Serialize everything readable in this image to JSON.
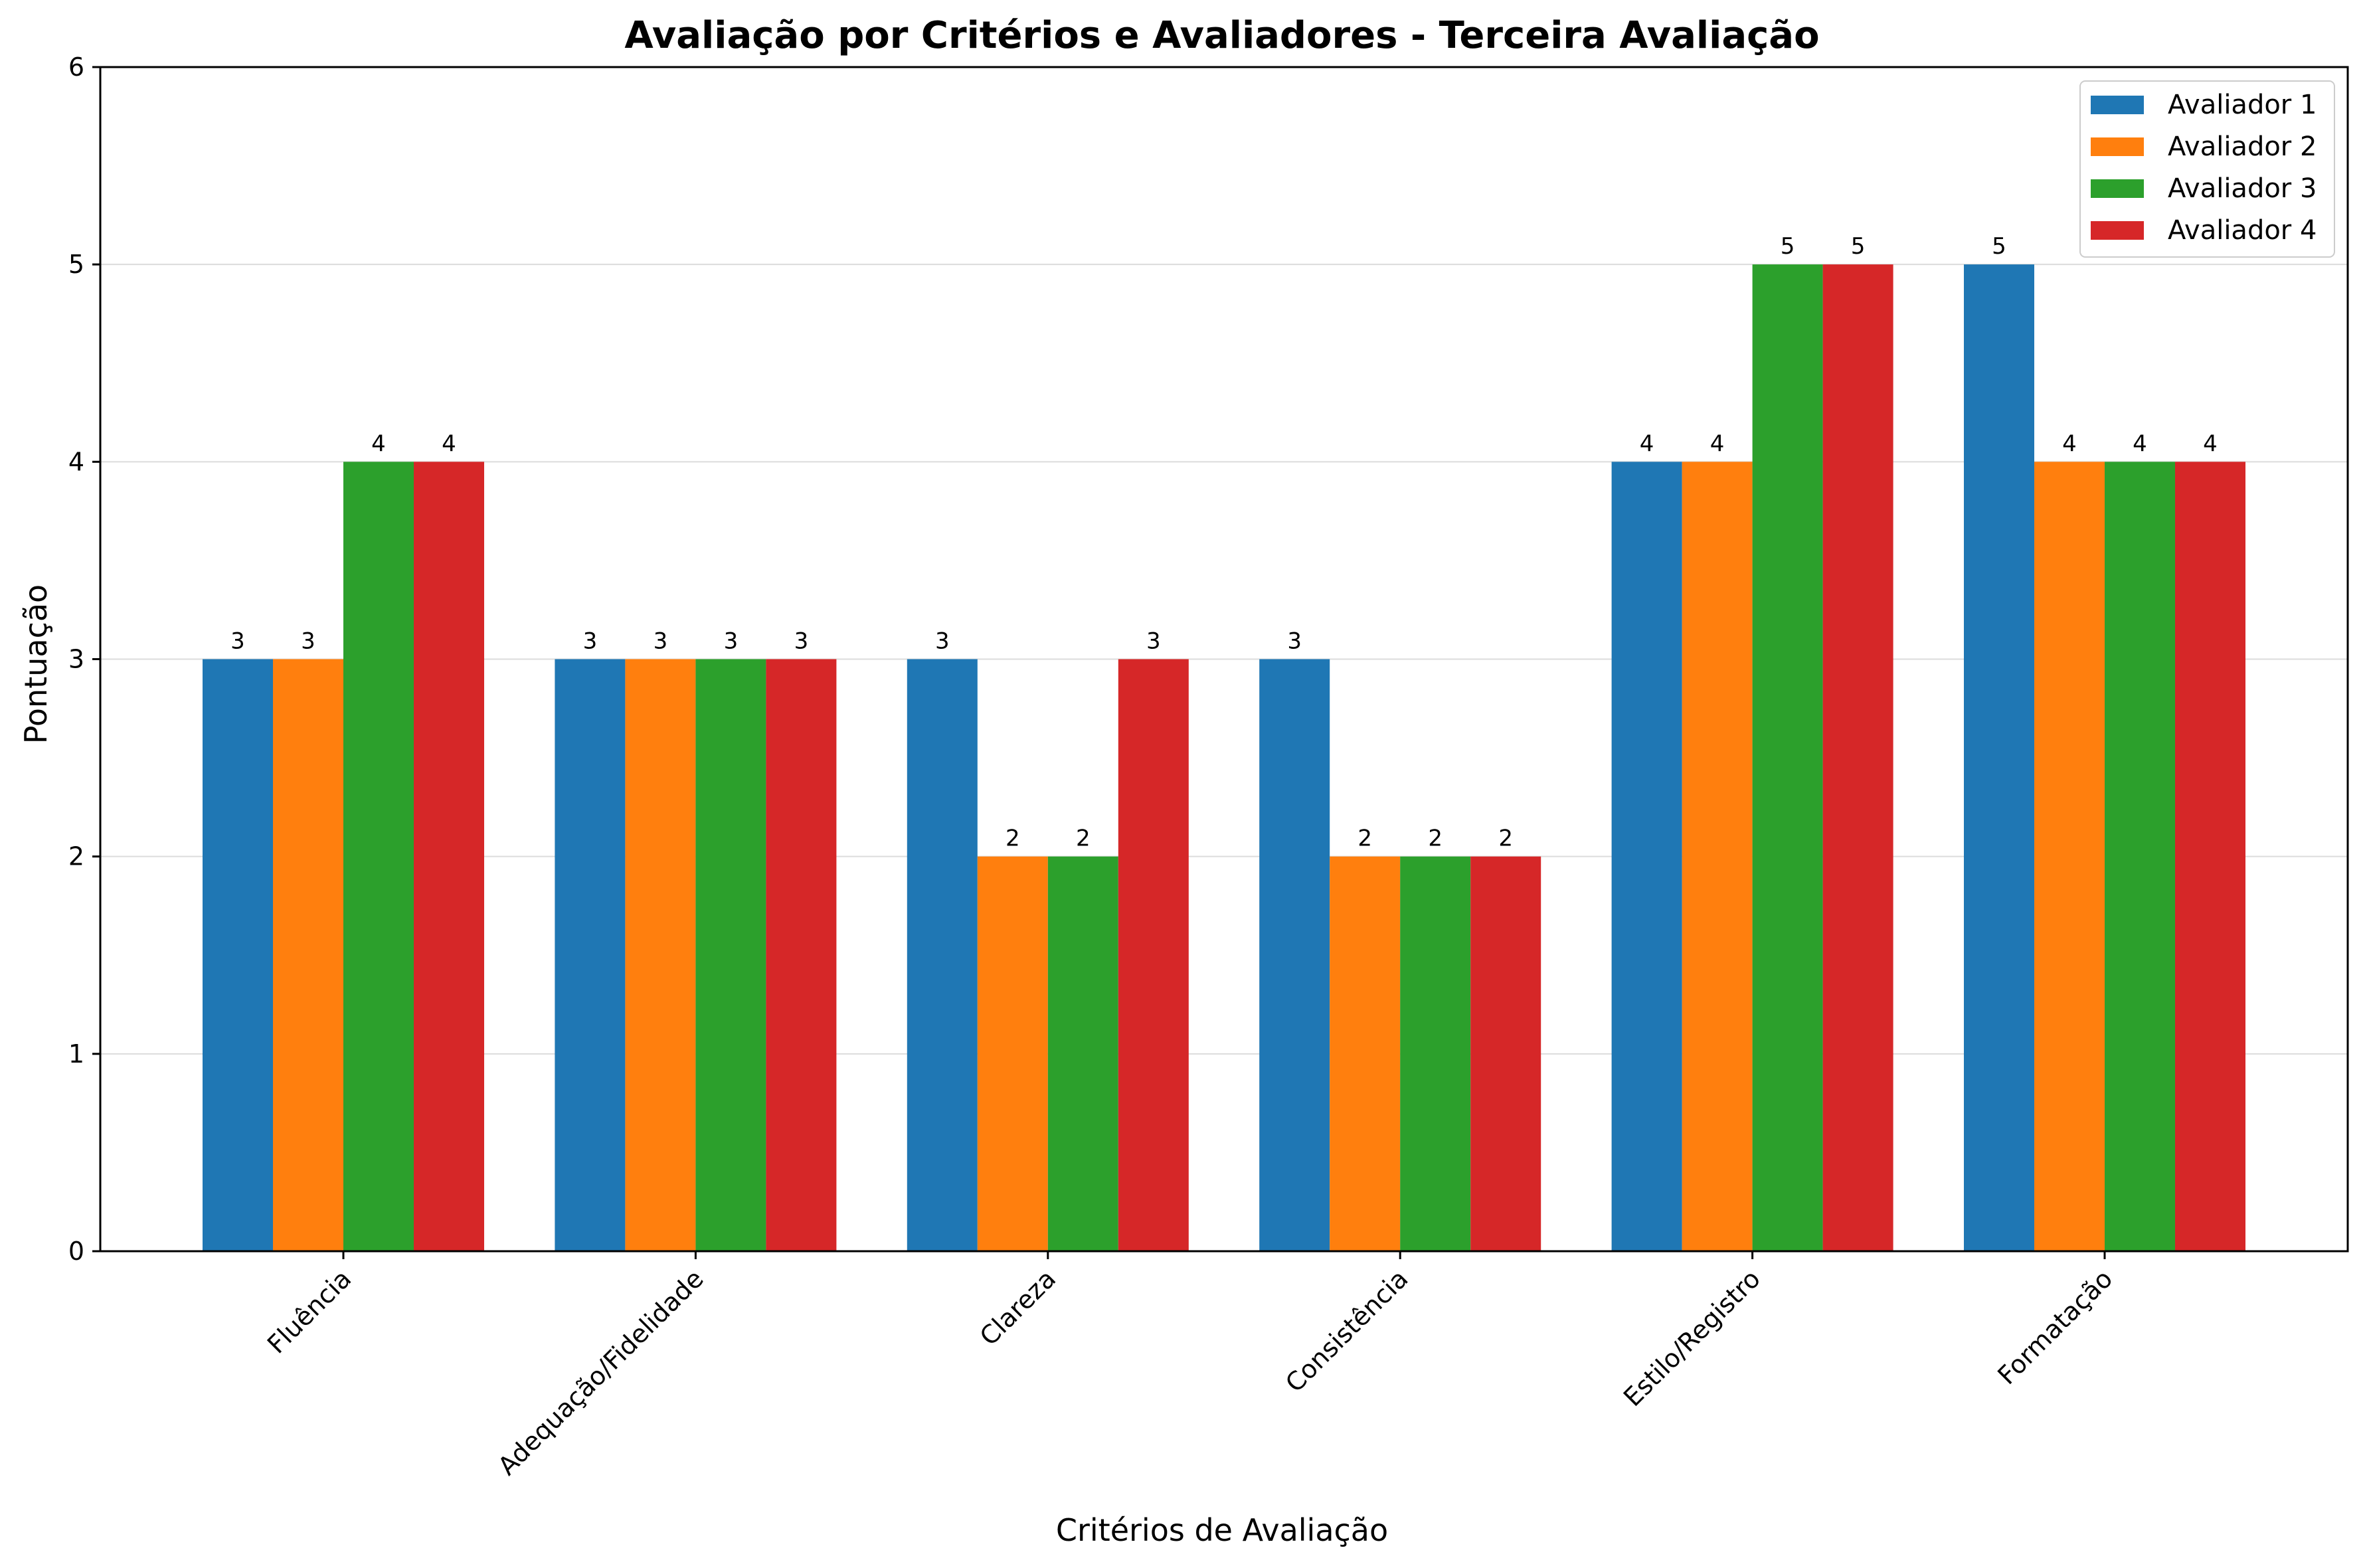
{
  "chart_data": {
    "type": "bar",
    "title": "Avaliação por Critérios e Avaliadores - Terceira Avaliação",
    "xlabel": "Critérios de Avaliação",
    "ylabel": "Pontuação",
    "ylim": [
      0,
      6
    ],
    "yticks": [
      "0",
      "1",
      "2",
      "3",
      "4",
      "5",
      "6"
    ],
    "categories": [
      "Fluência",
      "Adequação/Fidelidade",
      "Clareza",
      "Consistência",
      "Estilo/Registro",
      "Formatação"
    ],
    "series": [
      {
        "name": "Avaliador 1",
        "color": "#1f77b4",
        "values": [
          3,
          3,
          3,
          3,
          4,
          5
        ]
      },
      {
        "name": "Avaliador 2",
        "color": "#ff7f0e",
        "values": [
          3,
          3,
          2,
          2,
          4,
          4
        ]
      },
      {
        "name": "Avaliador 3",
        "color": "#2ca02c",
        "values": [
          4,
          3,
          2,
          2,
          5,
          4
        ]
      },
      {
        "name": "Avaliador 4",
        "color": "#d62728",
        "values": [
          4,
          3,
          3,
          2,
          5,
          4
        ]
      }
    ],
    "grid": "y",
    "legend": "top-right"
  }
}
